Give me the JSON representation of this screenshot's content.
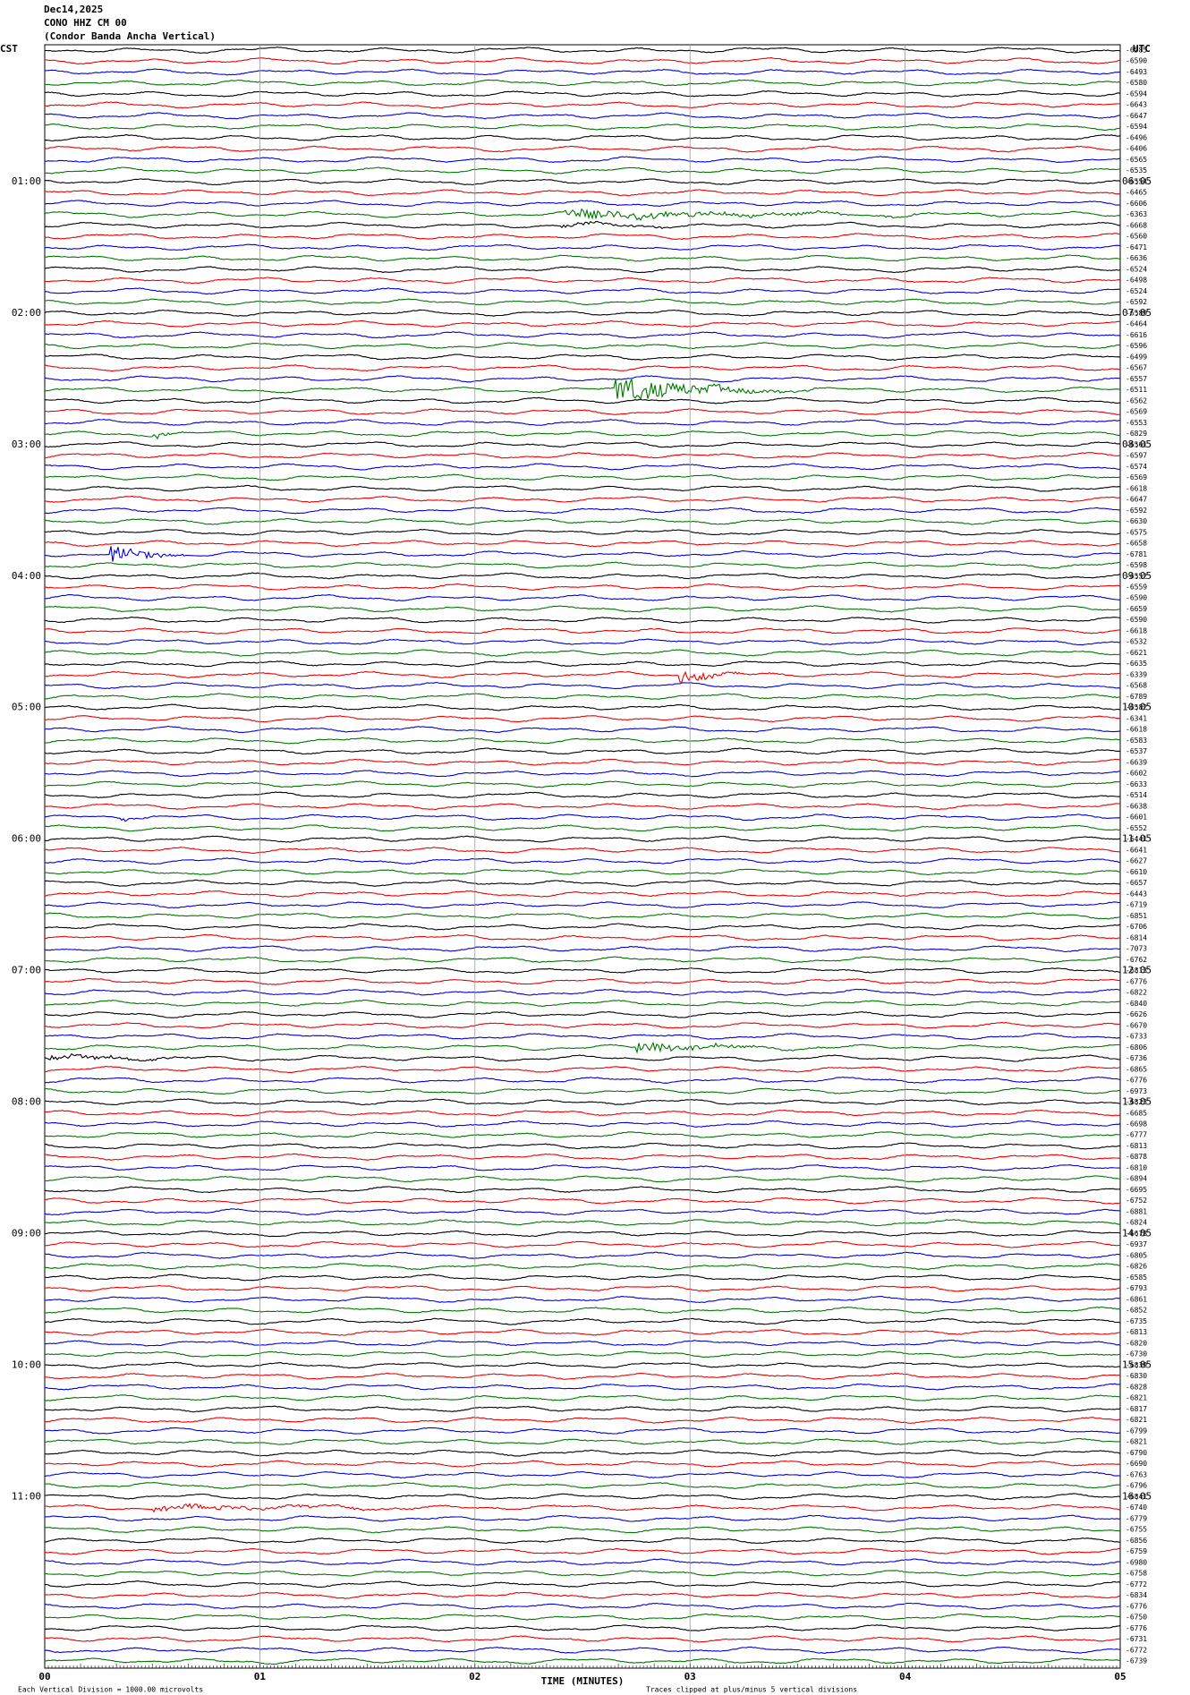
{
  "header": {
    "date": "Dec14,2025",
    "station": "CONO HHZ CM 00",
    "description": "(Condor Banda Ancha Vertical)"
  },
  "left_zone": "CST",
  "right_zone": "UTC",
  "left_hours": [
    "01:00",
    "02:00",
    "03:00",
    "04:00",
    "05:00",
    "06:00",
    "07:00",
    "08:00",
    "09:00",
    "10:00",
    "11:00"
  ],
  "right_hours": [
    "06:05",
    "07:05",
    "08:05",
    "09:05",
    "10:05",
    "11:05",
    "12:05",
    "13:05",
    "14:05",
    "15:05",
    "16:05"
  ],
  "trace_labels": [
    "-6585",
    "-6590",
    "-6493",
    "-6580",
    "-6594",
    "-6643",
    "-6647",
    "-6594",
    "-6496",
    "-6406",
    "-6565",
    "-6535",
    "-6554",
    "-6465",
    "-6606",
    "-6363",
    "-6668",
    "-6560",
    "-6471",
    "-6636",
    "-6524",
    "-6498",
    "-6524",
    "-6592",
    "-6589",
    "-6464",
    "-6616",
    "-6596",
    "-6499",
    "-6567",
    "-6557",
    "-6511",
    "-6562",
    "-6569",
    "-6553",
    "-6829",
    "-6561",
    "-6597",
    "-6574",
    "-6569",
    "-6618",
    "-6647",
    "-6592",
    "-6630",
    "-6575",
    "-6658",
    "-6781",
    "-6598",
    "-6552",
    "-6559",
    "-6590",
    "-6659",
    "-6590",
    "-6618",
    "-6532",
    "-6621",
    "-6635",
    "-6339",
    "-6568",
    "-6789",
    "-6582",
    "-6341",
    "-6618",
    "-6583",
    "-6537",
    "-6639",
    "-6602",
    "-6633",
    "-6514",
    "-6638",
    "-6601",
    "-6552",
    "-6441",
    "-6641",
    "-6627",
    "-6610",
    "-6657",
    "-6443",
    "-6719",
    "-6851",
    "-6706",
    "-6814",
    "-7073",
    "-6762",
    "-6813",
    "-6776",
    "-6822",
    "-6840",
    "-6626",
    "-6670",
    "-6733",
    "-6806",
    "-6736",
    "-6865",
    "-6776",
    "-6973",
    "-6823",
    "-6685",
    "-6698",
    "-6777",
    "-6813",
    "-6878",
    "-6810",
    "-6894",
    "-6695",
    "-6752",
    "-6881",
    "-6824",
    "-6678",
    "-6937",
    "-6805",
    "-6826",
    "-6585",
    "-6793",
    "-6861",
    "-6852",
    "-6735",
    "-6813",
    "-6820",
    "-6730",
    "-6839",
    "-6830",
    "-6828",
    "-6821",
    "-6817",
    "-6821",
    "-6799",
    "-6821",
    "-6790",
    "-6690",
    "-6763",
    "-6796",
    "-6841",
    "-6740",
    "-6779",
    "-6755",
    "-6856",
    "-6759",
    "-6980",
    "-6758",
    "-6772",
    "-6834",
    "-6776",
    "-6750",
    "-6776",
    "-6731",
    "-6772",
    "-6739"
  ],
  "x_axis": {
    "ticks": [
      "00",
      "01",
      "02",
      "03",
      "04",
      "05"
    ],
    "title": "TIME (MINUTES)"
  },
  "footer": {
    "scale": "Each Vertical Division = 1000.00 microvolts",
    "clip": "Traces clipped at plus/minus 5 vertical divisions"
  }
}
